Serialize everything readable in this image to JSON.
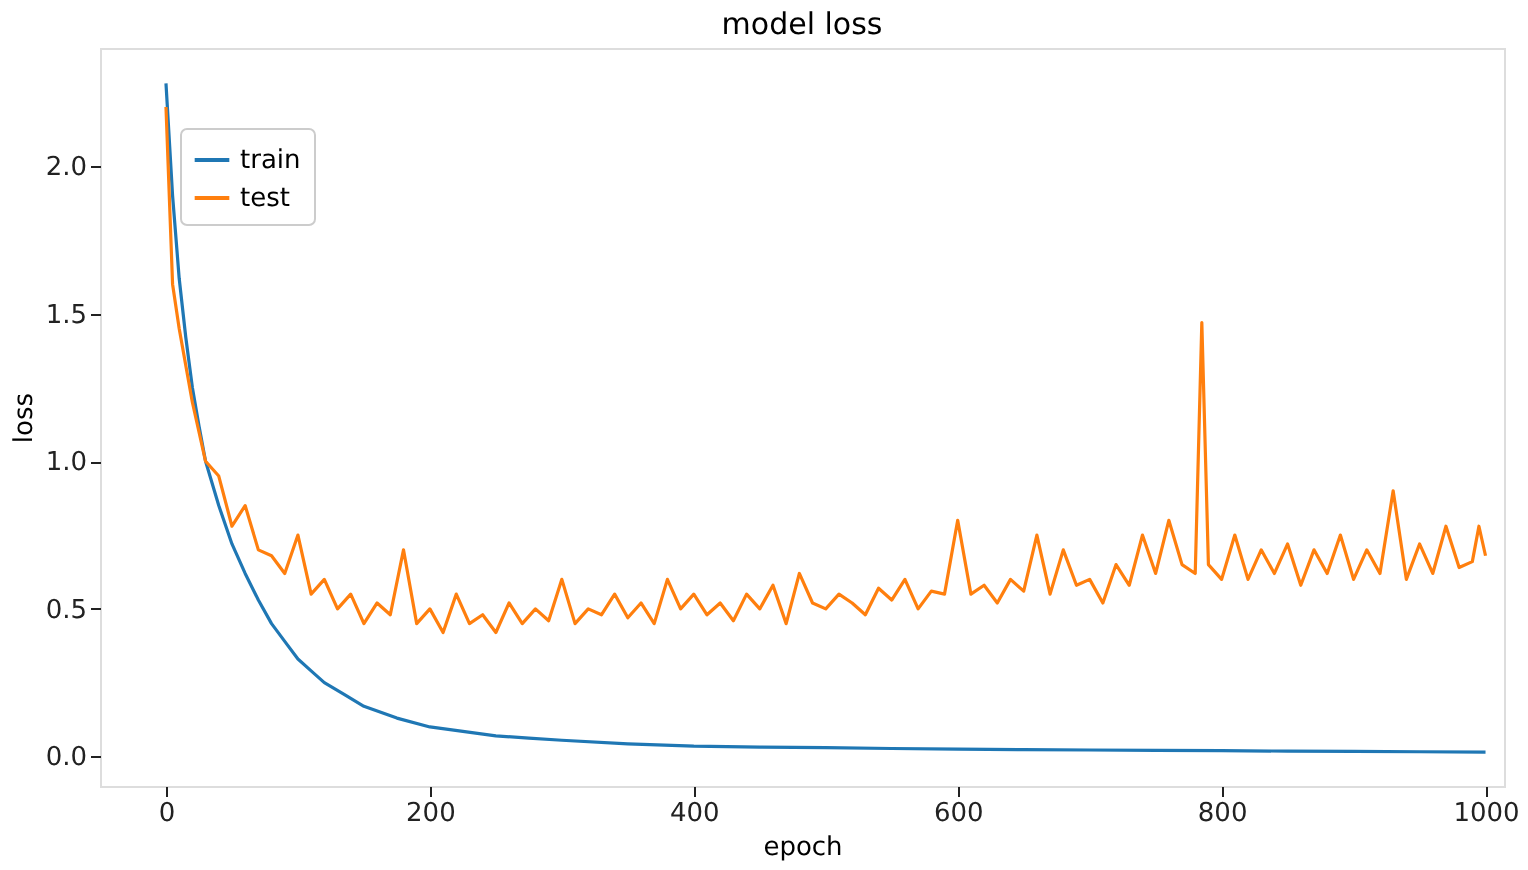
{
  "chart_data": {
    "type": "line",
    "title": "model loss",
    "xlabel": "epoch",
    "ylabel": "loss",
    "xlim": [
      -50,
      1014
    ],
    "ylim": [
      -0.1,
      2.4
    ],
    "xticks": [
      0,
      200,
      400,
      600,
      800,
      1000
    ],
    "yticks": [
      {
        "value": 0,
        "label": "0.0"
      },
      {
        "value": 0.5,
        "label": "0.5"
      },
      {
        "value": 1,
        "label": "1.0"
      },
      {
        "value": 1.5,
        "label": "1.5"
      },
      {
        "value": 2,
        "label": "2.0"
      }
    ],
    "grid": false,
    "legend": "top left",
    "marker": "none",
    "line_style": "solid",
    "series": [
      {
        "name": "train",
        "color": "#1f77b4",
        "x": [
          0,
          5,
          10,
          15,
          20,
          25,
          30,
          40,
          50,
          60,
          70,
          80,
          90,
          100,
          110,
          120,
          135,
          150,
          175,
          200,
          225,
          250,
          275,
          300,
          350,
          400,
          450,
          500,
          550,
          600,
          650,
          700,
          750,
          800,
          850,
          900,
          950,
          1000
        ],
        "values": [
          2.28,
          1.9,
          1.62,
          1.42,
          1.25,
          1.12,
          1.0,
          0.85,
          0.72,
          0.62,
          0.53,
          0.45,
          0.39,
          0.33,
          0.29,
          0.25,
          0.21,
          0.17,
          0.13,
          0.1,
          0.085,
          0.07,
          0.062,
          0.055,
          0.043,
          0.035,
          0.032,
          0.03,
          0.027,
          0.025,
          0.023,
          0.022,
          0.021,
          0.02,
          0.018,
          0.017,
          0.016,
          0.015
        ]
      },
      {
        "name": "test",
        "color": "#ff7f0e",
        "x": [
          0,
          5,
          10,
          20,
          30,
          40,
          50,
          60,
          70,
          80,
          90,
          100,
          110,
          120,
          130,
          140,
          150,
          160,
          170,
          180,
          190,
          200,
          210,
          220,
          230,
          240,
          250,
          260,
          270,
          280,
          290,
          300,
          310,
          320,
          330,
          340,
          350,
          360,
          370,
          380,
          390,
          400,
          410,
          420,
          430,
          440,
          450,
          460,
          470,
          480,
          490,
          500,
          510,
          520,
          530,
          540,
          550,
          560,
          570,
          580,
          590,
          600,
          610,
          620,
          630,
          640,
          650,
          660,
          670,
          680,
          690,
          700,
          710,
          720,
          730,
          740,
          750,
          760,
          770,
          780,
          785,
          790,
          800,
          810,
          820,
          830,
          840,
          850,
          860,
          870,
          880,
          890,
          900,
          910,
          920,
          930,
          940,
          950,
          960,
          970,
          980,
          990,
          995,
          1000
        ],
        "values": [
          2.2,
          1.6,
          1.45,
          1.2,
          1.0,
          0.95,
          0.78,
          0.85,
          0.7,
          0.68,
          0.62,
          0.75,
          0.55,
          0.6,
          0.5,
          0.55,
          0.45,
          0.52,
          0.48,
          0.7,
          0.45,
          0.5,
          0.42,
          0.55,
          0.45,
          0.48,
          0.42,
          0.52,
          0.45,
          0.5,
          0.46,
          0.6,
          0.45,
          0.5,
          0.48,
          0.55,
          0.47,
          0.52,
          0.45,
          0.6,
          0.5,
          0.55,
          0.48,
          0.52,
          0.46,
          0.55,
          0.5,
          0.58,
          0.45,
          0.62,
          0.52,
          0.5,
          0.55,
          0.52,
          0.48,
          0.57,
          0.53,
          0.6,
          0.5,
          0.56,
          0.55,
          0.8,
          0.55,
          0.58,
          0.52,
          0.6,
          0.56,
          0.75,
          0.55,
          0.7,
          0.58,
          0.6,
          0.52,
          0.65,
          0.58,
          0.75,
          0.62,
          0.8,
          0.65,
          0.62,
          1.47,
          0.65,
          0.6,
          0.75,
          0.6,
          0.7,
          0.62,
          0.72,
          0.58,
          0.7,
          0.62,
          0.75,
          0.6,
          0.7,
          0.62,
          0.9,
          0.6,
          0.72,
          0.62,
          0.78,
          0.64,
          0.66,
          0.78,
          0.68
        ]
      }
    ]
  }
}
